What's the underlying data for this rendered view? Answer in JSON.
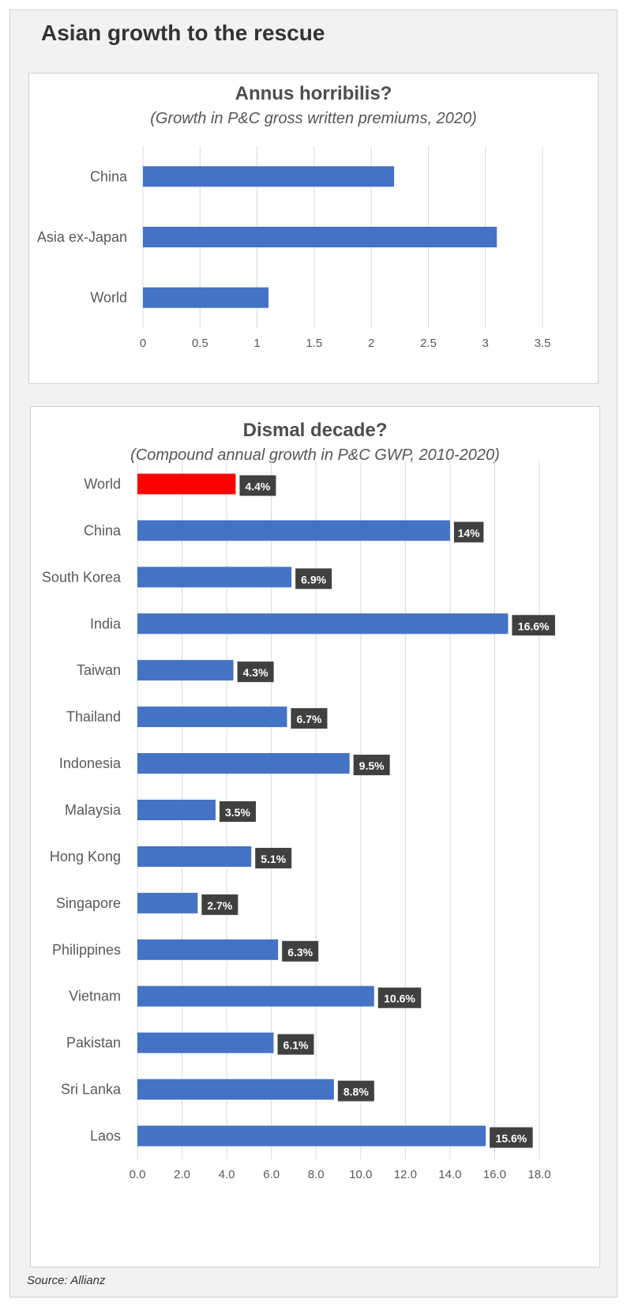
{
  "page": {
    "title": "Asian growth to the rescue",
    "source": "Source: Allianz"
  },
  "colors": {
    "bar": "#4472c4",
    "highlight": "#ff0000",
    "label_box": "#404040",
    "grid": "#d9d9d9",
    "text": "#595959"
  },
  "chart_data": [
    {
      "type": "bar",
      "orientation": "horizontal",
      "title": "Annus horribilis?",
      "subtitle": "(Growth in P&C gross written premiums, 2020)",
      "categories": [
        "China",
        "Asia ex-Japan",
        "World"
      ],
      "values": [
        2.2,
        3.1,
        1.1
      ],
      "xlim": [
        0,
        3.5
      ],
      "ticks": [
        "0",
        "0.5",
        "1",
        "1.5",
        "2",
        "2.5",
        "3",
        "3.5"
      ],
      "grid": true
    },
    {
      "type": "bar",
      "orientation": "horizontal",
      "title": "Dismal decade?",
      "subtitle": "(Compound annual growth in P&C GWP, 2010-2020)",
      "categories": [
        "World",
        "China",
        "South Korea",
        "India",
        "Taiwan",
        "Thailand",
        "Indonesia",
        "Malaysia",
        "Hong Kong",
        "Singapore",
        "Philippines",
        "Vietnam",
        "Pakistan",
        "Sri Lanka",
        "Laos"
      ],
      "values": [
        4.4,
        14,
        6.9,
        16.6,
        4.3,
        6.7,
        9.5,
        3.5,
        5.1,
        2.7,
        6.3,
        10.6,
        6.1,
        8.8,
        15.6
      ],
      "data_labels": [
        "4.4%",
        "14%",
        "6.9%",
        "16.6%",
        "4.3%",
        "6.7%",
        "9.5%",
        "3.5%",
        "5.1%",
        "2.7%",
        "6.3%",
        "10.6%",
        "6.1%",
        "8.8%",
        "15.6%"
      ],
      "highlight": [
        "World"
      ],
      "xlim": [
        0,
        18
      ],
      "ticks": [
        "0.0",
        "2.0",
        "4.0",
        "6.0",
        "8.0",
        "10.0",
        "12.0",
        "14.0",
        "16.0",
        "18.0"
      ],
      "grid": true
    }
  ]
}
